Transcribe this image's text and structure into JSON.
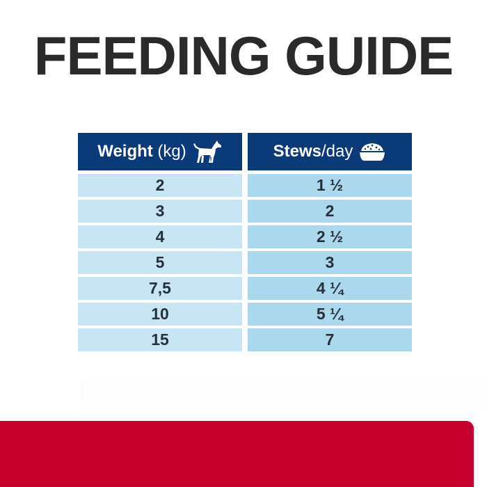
{
  "title": "FEEDING GUIDE",
  "table": {
    "weight_header": {
      "bold": "Weight",
      "light": " (kg)",
      "icon": "dog-icon"
    },
    "stews_header": {
      "bold": "Stews",
      "light": "/day",
      "icon": "food-bowl-icon"
    },
    "rows": [
      {
        "weight": "2",
        "stews": "1 ½"
      },
      {
        "weight": "3",
        "stews": "2"
      },
      {
        "weight": "4",
        "stews": "2 ½"
      },
      {
        "weight": "5",
        "stews": "3"
      },
      {
        "weight": "7,5",
        "stews": "4 ¼"
      },
      {
        "weight": "10",
        "stews": "5 ¼"
      },
      {
        "weight": "15",
        "stews": "7"
      }
    ]
  },
  "colors": {
    "header": "#0b3a78",
    "row_left": "#c7e5f3",
    "row_right": "#acd8ee",
    "brand_red": "#c60030",
    "title": "#2a2a2a"
  }
}
